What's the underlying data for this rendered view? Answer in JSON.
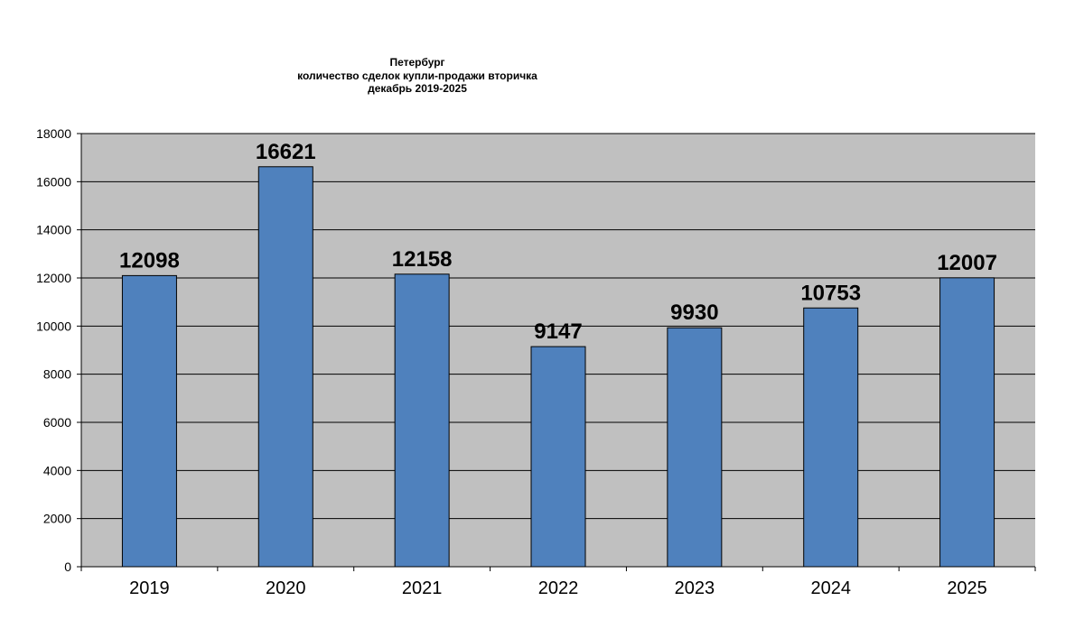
{
  "chart_data": {
    "type": "bar",
    "title_lines": [
      "Петербург",
      "количество сделок купли-продажи вторичка",
      "декабрь 2019-2025"
    ],
    "categories": [
      "2019",
      "2020",
      "2021",
      "2022",
      "2023",
      "2024",
      "2025"
    ],
    "values": [
      12098,
      16621,
      12158,
      9147,
      9930,
      10753,
      12007
    ],
    "data_labels": [
      "12098",
      "16621",
      "12158",
      "9147",
      "9930",
      "10753",
      "12007"
    ],
    "ylim": [
      0,
      18000
    ],
    "yticks": [
      0,
      2000,
      4000,
      6000,
      8000,
      10000,
      12000,
      14000,
      16000,
      18000
    ],
    "ytick_labels": [
      "0",
      "2000",
      "4000",
      "6000",
      "8000",
      "10000",
      "12000",
      "14000",
      "16000",
      "18000"
    ],
    "xlabel": "",
    "ylabel": "",
    "grid": true,
    "legend": "none",
    "colors": {
      "bar": "#4F81BD",
      "bar_edge": "#000000",
      "plot_background": "#C0C0C0",
      "gridline": "#000000"
    }
  }
}
